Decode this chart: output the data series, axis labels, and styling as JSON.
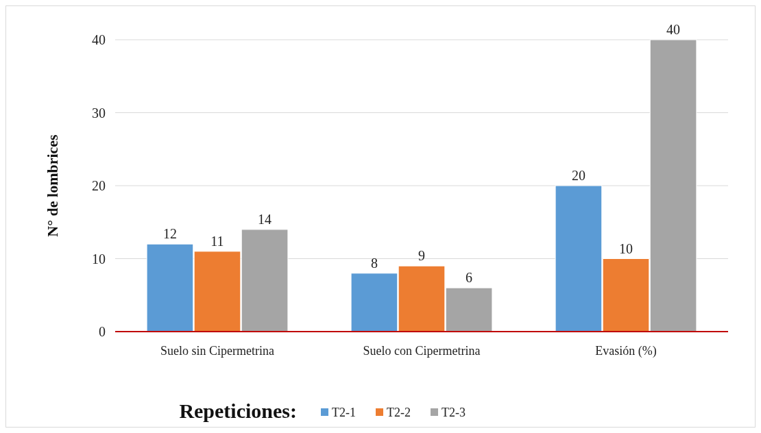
{
  "chart_data": {
    "type": "bar",
    "ylabel": "N° de lombrices",
    "legend_title": "Repeticiones:",
    "categories": [
      "Suelo sin Cipermetrina",
      "Suelo con Cipermetrina",
      "Evasión (%)"
    ],
    "series": [
      {
        "name": "T2-1",
        "color": "#5b9bd5",
        "values": [
          12,
          8,
          20
        ]
      },
      {
        "name": "T2-2",
        "color": "#ed7d31",
        "values": [
          11,
          9,
          10
        ]
      },
      {
        "name": "T2-3",
        "color": "#a5a5a5",
        "values": [
          14,
          6,
          40
        ]
      }
    ],
    "ylim": [
      0,
      40
    ],
    "yticks": [
      0,
      10,
      20,
      30,
      40
    ],
    "grid": "y",
    "legend": "bottom",
    "data_labels": true
  }
}
